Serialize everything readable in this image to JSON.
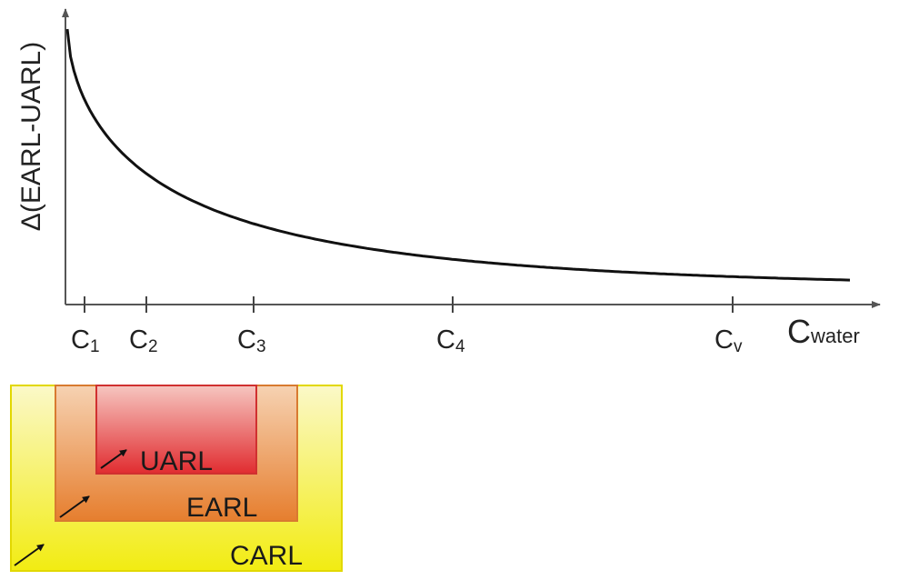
{
  "chart_data": {
    "type": "line",
    "ylabel": "Δ(EARL-UARL)",
    "xlabel": {
      "main": "C",
      "sub": "water"
    },
    "ticks": [
      {
        "main": "C",
        "sub": "1"
      },
      {
        "main": "C",
        "sub": "2"
      },
      {
        "main": "C",
        "sub": "3"
      },
      {
        "main": "C",
        "sub": "4"
      },
      {
        "main": "C",
        "sub": "v"
      }
    ],
    "grid": false,
    "curve": "monotonically decreasing, convex decay approaching a horizontal asymptote"
  },
  "legend": {
    "outer": {
      "label": "CARL",
      "color": "#f5f01e"
    },
    "middle": {
      "label": "EARL",
      "color": "#ea8a3a"
    },
    "inner": {
      "label": "UARL",
      "color": "#e5363a"
    }
  }
}
